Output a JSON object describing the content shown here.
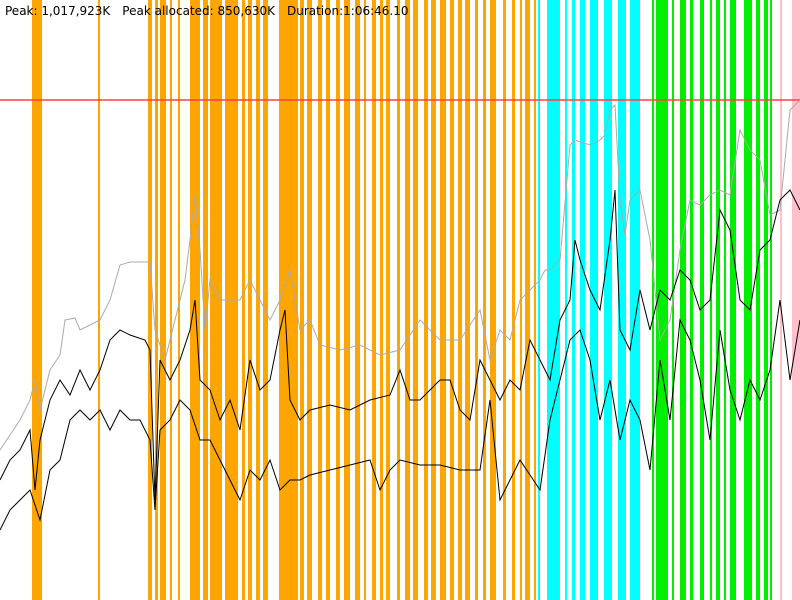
{
  "header": {
    "peak": "Peak: 1,017,923K",
    "peak_allocated": "Peak allocated: 850,630K",
    "duration": "Duration:1:06:46.10"
  }
}
